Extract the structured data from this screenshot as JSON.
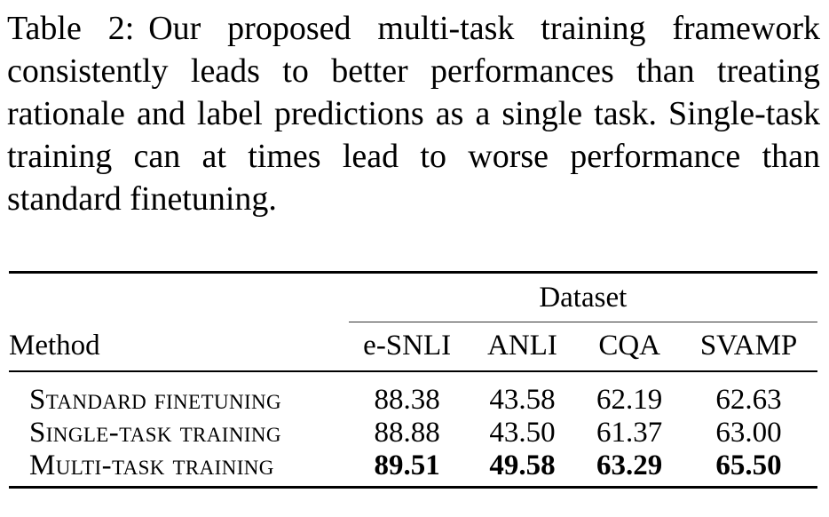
{
  "caption": {
    "tag": "Table 2:",
    "text": "Our proposed multi-task training framework consistently leads to better performances than treating rationale and label predictions as a single task. Single-task training can at times lead to worse performance than standard finetuning."
  },
  "table": {
    "group_header": "Dataset",
    "method_header": "Method",
    "columns": [
      "e-SNLI",
      "ANLI",
      "CQA",
      "SVAMP"
    ],
    "rows": [
      {
        "method": "Standard finetuning",
        "values": [
          "88.38",
          "43.58",
          "62.19",
          "62.63"
        ],
        "bold": false
      },
      {
        "method": "Single-task training",
        "values": [
          "88.88",
          "43.50",
          "61.37",
          "63.00"
        ],
        "bold": false
      },
      {
        "method": "Multi-task training",
        "values": [
          "89.51",
          "49.58",
          "63.29",
          "65.50"
        ],
        "bold": true
      }
    ]
  }
}
